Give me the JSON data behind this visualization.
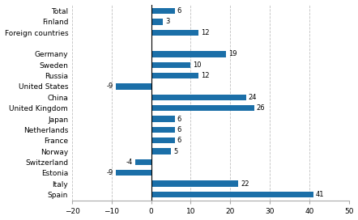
{
  "categories": [
    "Total",
    "Finland",
    "Foreign countries",
    "",
    "Germany",
    "Sweden",
    "Russia",
    "United States",
    "China",
    "United Kingdom",
    "Japan",
    "Netherlands",
    "France",
    "Norway",
    "Switzerland",
    "Estonia",
    "Italy",
    "Spain"
  ],
  "values": [
    6,
    3,
    12,
    null,
    19,
    10,
    12,
    -9,
    24,
    26,
    6,
    6,
    6,
    5,
    -4,
    -9,
    22,
    41
  ],
  "bar_color": "#1b6fa8",
  "xlim": [
    -20,
    50
  ],
  "xticks": [
    -20,
    -10,
    0,
    10,
    20,
    30,
    40,
    50
  ],
  "grid_color": "#c0c0c0",
  "background_color": "#ffffff",
  "label_fontsize": 6.0,
  "tick_fontsize": 6.5
}
